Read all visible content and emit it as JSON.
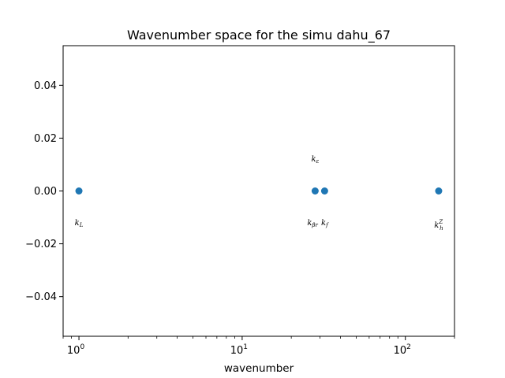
{
  "chart_data": {
    "type": "scatter",
    "title": "Wavenumber space for the simu dahu_67",
    "xlabel": "wavenumber",
    "ylabel": "",
    "xscale": "log",
    "xlim": [
      0.8,
      200
    ],
    "ylim": [
      -0.055,
      0.055
    ],
    "grid": false,
    "color": "#1f77b4",
    "x_ticks": [
      {
        "base": "10",
        "exp": "0",
        "value": 1
      },
      {
        "base": "10",
        "exp": "1",
        "value": 10
      },
      {
        "base": "10",
        "exp": "2",
        "value": 100
      }
    ],
    "y_ticks": [
      {
        "label": "0.04",
        "value": 0.04
      },
      {
        "label": "0.02",
        "value": 0.02
      },
      {
        "label": "0.00",
        "value": 0.0
      },
      {
        "label": "−0.02",
        "value": -0.02
      },
      {
        "label": "−0.04",
        "value": -0.04
      }
    ],
    "points": [
      {
        "x": 1.0,
        "y": 0.0
      },
      {
        "x": 28.0,
        "y": 0.0
      },
      {
        "x": 32.0,
        "y": 0.0
      },
      {
        "x": 160.0,
        "y": 0.0
      }
    ],
    "annotations": [
      {
        "base": "k",
        "sub": "L",
        "sup": "",
        "x": 1.0,
        "y": -0.012
      },
      {
        "base": "k",
        "sub": "ε",
        "sup": "",
        "x": 28.0,
        "y": 0.012
      },
      {
        "base": "k",
        "sub": "βr",
        "sup": "",
        "x": 27.0,
        "y": -0.012
      },
      {
        "base": "k",
        "sub": "f",
        "sup": "",
        "x": 32.0,
        "y": -0.012
      },
      {
        "base": "k",
        "sub": "h",
        "sup": "Z",
        "x": 160.0,
        "y": -0.013
      }
    ]
  }
}
